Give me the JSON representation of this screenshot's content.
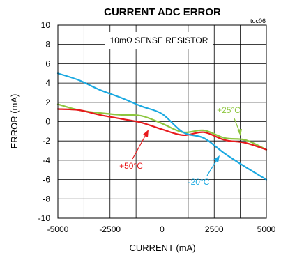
{
  "chart_data": {
    "type": "line",
    "title": "CURRENT ADC ERROR",
    "tag": "toc06",
    "note": "10mΩ SENSE RESISTOR",
    "xlabel": "CURRENT (mA)",
    "ylabel": "ERROR (mA)",
    "xlim": [
      -5000,
      5000
    ],
    "ylim": [
      -10,
      10
    ],
    "xticks": [
      -5000,
      -2500,
      0,
      2500,
      5000
    ],
    "yticks": [
      -10,
      -8,
      -6,
      -4,
      -2,
      0,
      2,
      4,
      6,
      8,
      10
    ],
    "grid": true,
    "series": [
      {
        "name": "+25°C",
        "color": "#8dc63f",
        "x": [
          -5000,
          -4000,
          -3000,
          -2000,
          -1000,
          0,
          1000,
          2000,
          3000,
          4000,
          5000
        ],
        "y": [
          1.8,
          1.2,
          0.9,
          0.7,
          0.6,
          -0.2,
          -1.1,
          -0.9,
          -1.7,
          -1.9,
          -2.9
        ]
      },
      {
        "name": "+50°C",
        "color": "#e8191c",
        "x": [
          -5000,
          -4000,
          -3000,
          -2000,
          -1000,
          0,
          1000,
          2000,
          3000,
          4000,
          5000
        ],
        "y": [
          1.3,
          1.2,
          0.7,
          0.3,
          -0.1,
          -0.8,
          -1.4,
          -1.1,
          -1.9,
          -2.2,
          -2.9
        ]
      },
      {
        "name": "-20°C",
        "color": "#1ba9e1",
        "x": [
          -5000,
          -4000,
          -3000,
          -2000,
          -1000,
          0,
          1000,
          2000,
          3000,
          4000,
          5000
        ],
        "y": [
          5.0,
          4.3,
          3.3,
          2.5,
          1.6,
          0.8,
          -1.1,
          -1.7,
          -3.3,
          -4.7,
          -6.0
        ]
      }
    ]
  }
}
